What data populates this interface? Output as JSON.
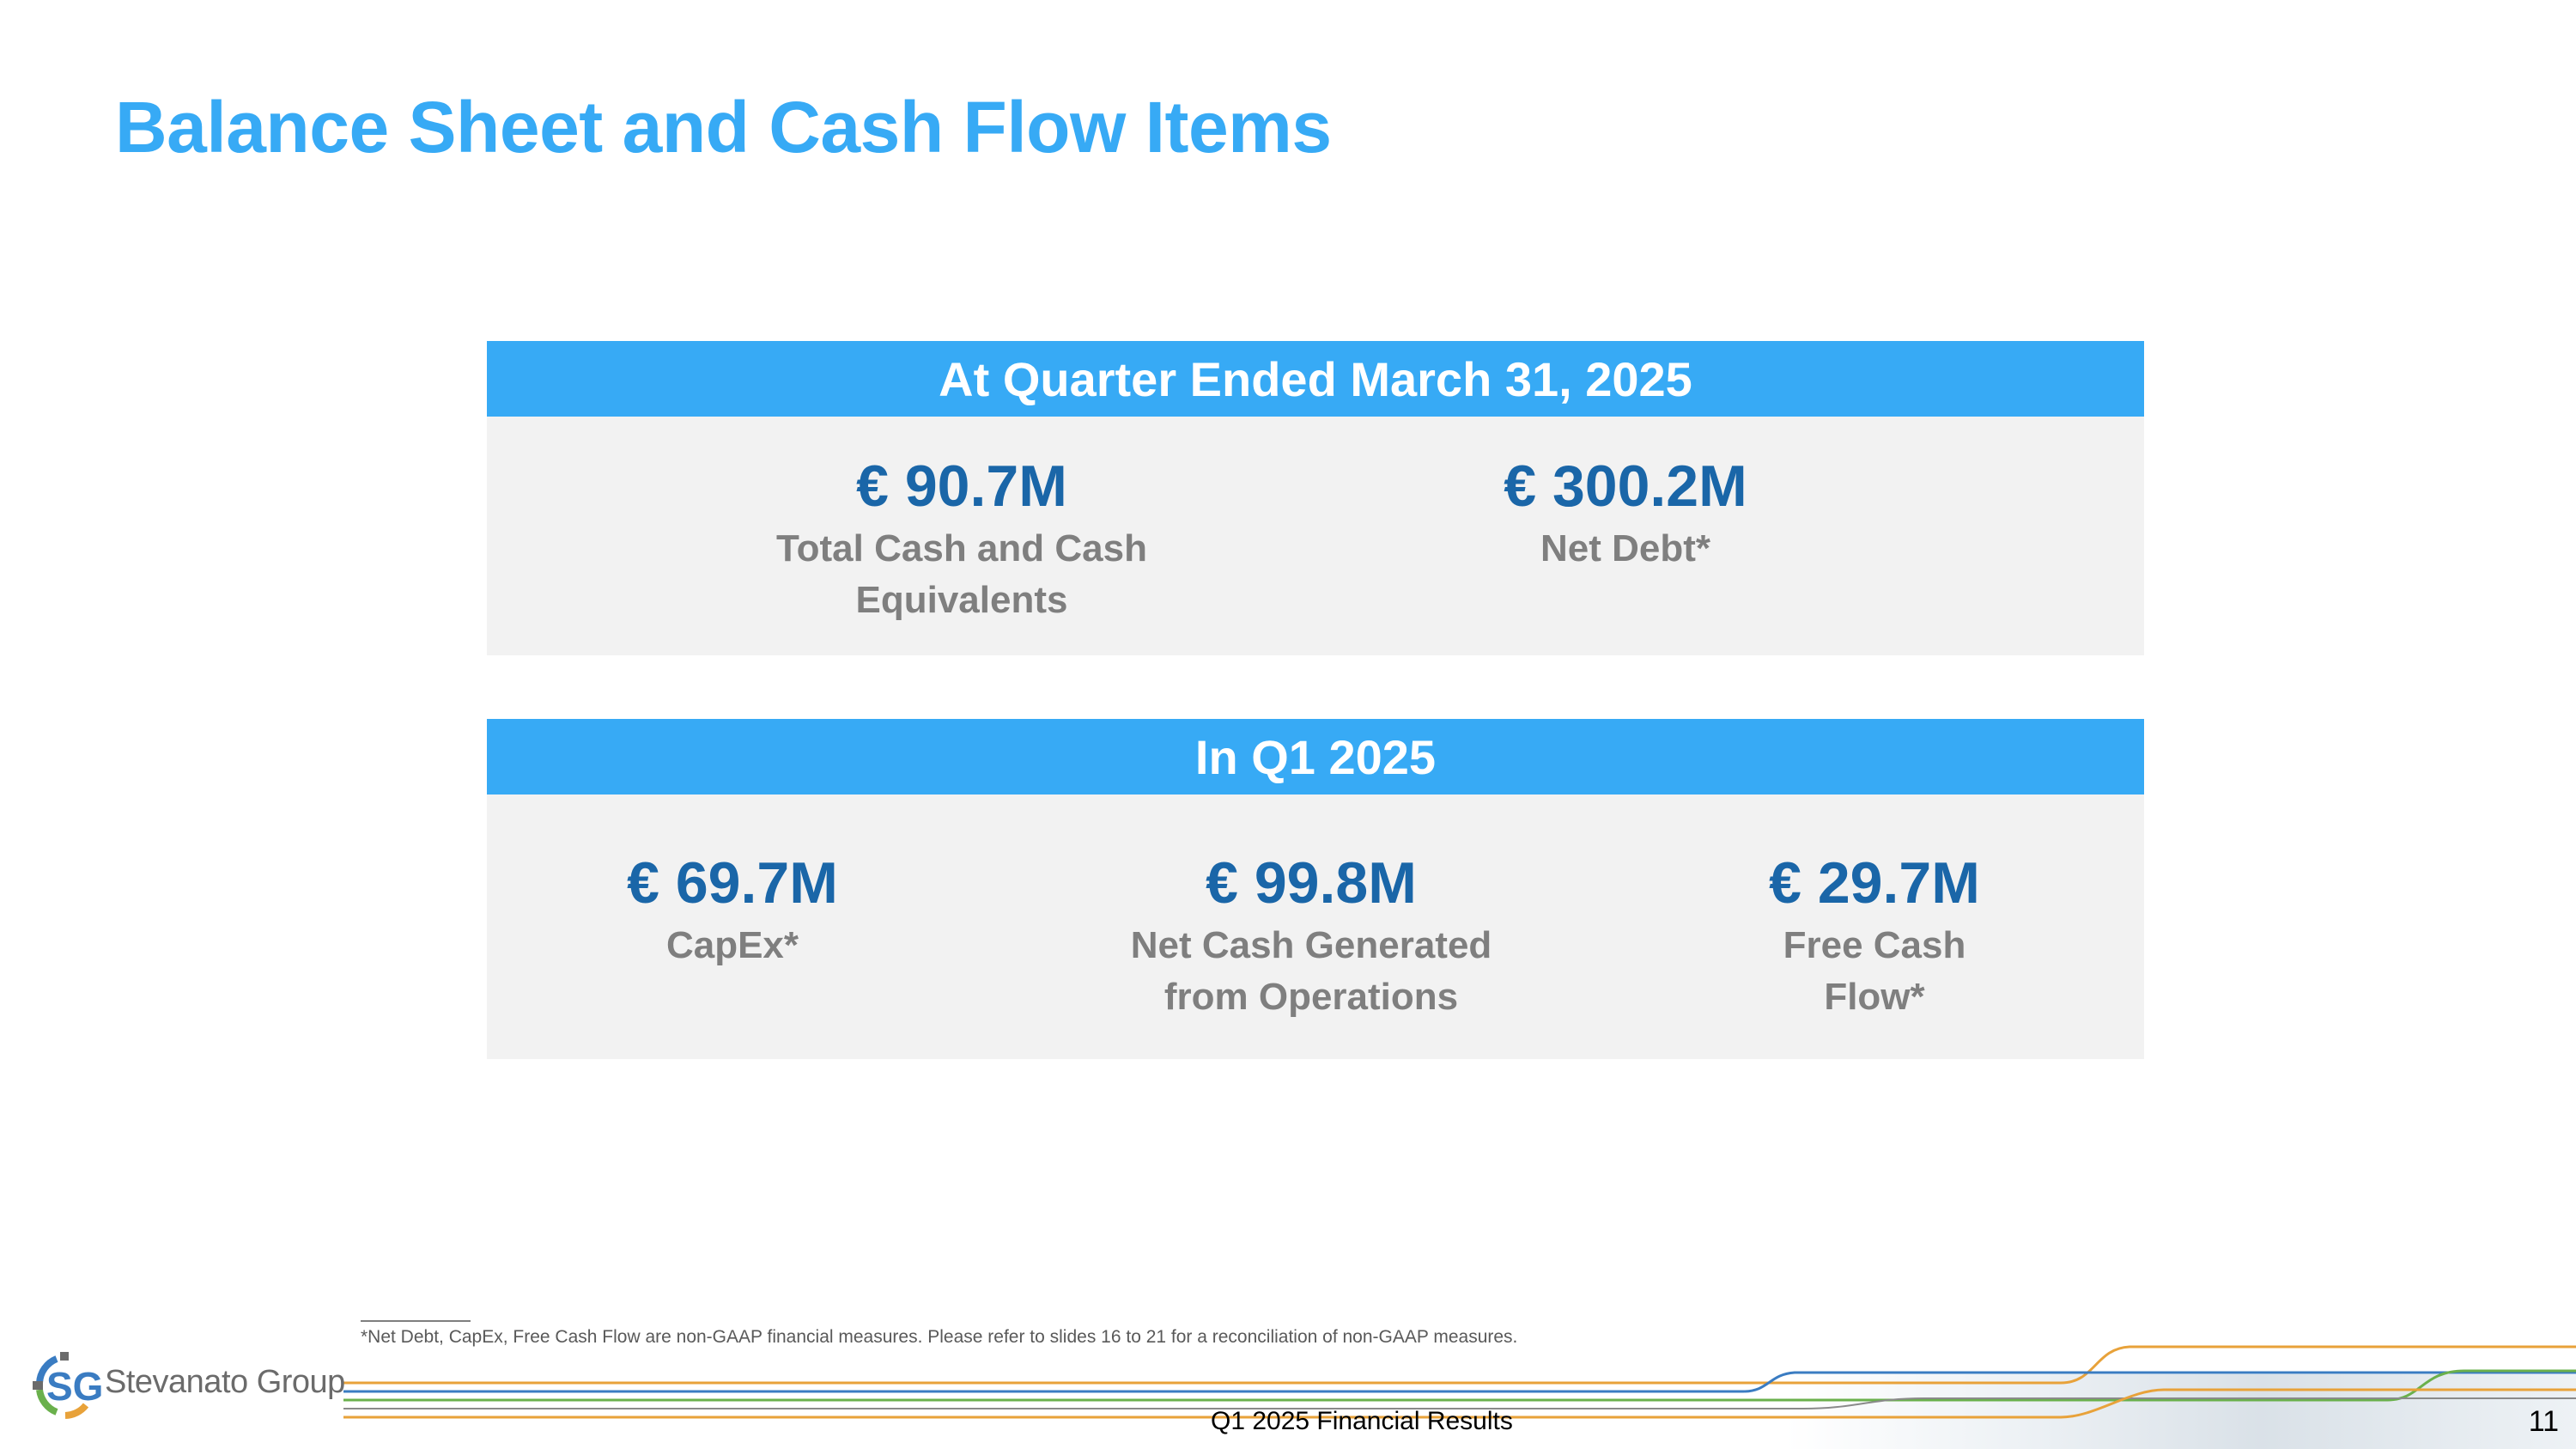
{
  "title": "Balance Sheet and Cash Flow Items",
  "quarter_end_panel": {
    "header": "At Quarter Ended March 31, 2025",
    "metrics": [
      {
        "value": "€ 90.7M",
        "label_lines": [
          "Total Cash and Cash",
          "Equivalents"
        ]
      },
      {
        "value": "€ 300.2M",
        "label_lines": [
          "Net Debt*"
        ]
      }
    ]
  },
  "quarter_panel": {
    "header": "In Q1 2025",
    "metrics": [
      {
        "value": "€ 69.7M",
        "label_lines": [
          "CapEx*"
        ]
      },
      {
        "value": "€ 99.8M",
        "label_lines": [
          "Net Cash Generated",
          "from Operations"
        ]
      },
      {
        "value": "€ 29.7M",
        "label_lines": [
          "Free Cash Flow*"
        ]
      }
    ]
  },
  "footnote": "*Net Debt, CapEx, Free Cash Flow are non-GAAP financial measures. Please refer to slides 16 to 21 for a reconciliation of non-GAAP measures.",
  "footer": {
    "logo_text": "Stevanato Group",
    "logo_mark": "SG",
    "center_text": "Q1 2025 Financial Results",
    "page_number": "11"
  },
  "colors": {
    "accent": "#37aaf5",
    "value": "#1a66a8",
    "label": "#7f7f7f",
    "panel_bg": "#f2f2f2"
  }
}
